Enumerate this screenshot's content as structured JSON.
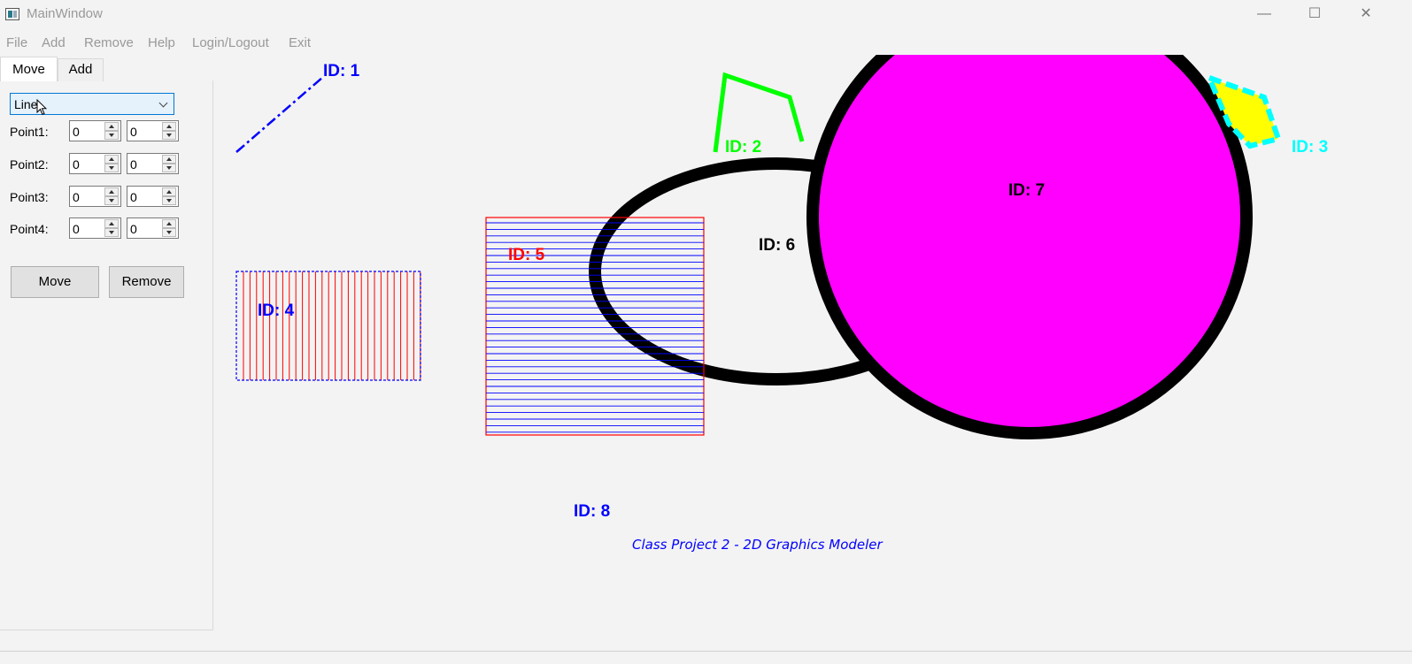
{
  "window": {
    "title": "MainWindow",
    "minimize_label": "—",
    "maximize_label": "☐",
    "close_label": "✕"
  },
  "menu": {
    "items": [
      "File",
      "Add",
      "Remove",
      "Help",
      "Login/Logout",
      "Exit"
    ]
  },
  "tabs": [
    {
      "label": "Move",
      "active": true
    },
    {
      "label": "Add",
      "active": false
    }
  ],
  "move_panel": {
    "shape_type": "Line",
    "points": [
      {
        "label": "Point1:",
        "x": "0",
        "y": "0"
      },
      {
        "label": "Point2:",
        "x": "0",
        "y": "0"
      },
      {
        "label": "Point3:",
        "x": "0",
        "y": "0"
      },
      {
        "label": "Point4:",
        "x": "0",
        "y": "0"
      }
    ],
    "move_label": "Move",
    "remove_label": "Remove"
  },
  "canvas": {
    "shape_labels": {
      "id1": "ID: 1",
      "id2": "ID: 2",
      "id3": "ID: 3",
      "id4": "ID: 4",
      "id5": "ID: 5",
      "id6": "ID: 6",
      "id7": "ID: 7",
      "id8": "ID: 8"
    },
    "text_shape": "Class Project 2 - 2D Graphics Modeler",
    "colors": {
      "blue": "#0000ff",
      "green": "#00ff00",
      "cyan": "#00ffff",
      "yellow": "#ffff00",
      "magenta": "#ff00ff",
      "red": "#ff0000",
      "black": "#000000"
    }
  }
}
